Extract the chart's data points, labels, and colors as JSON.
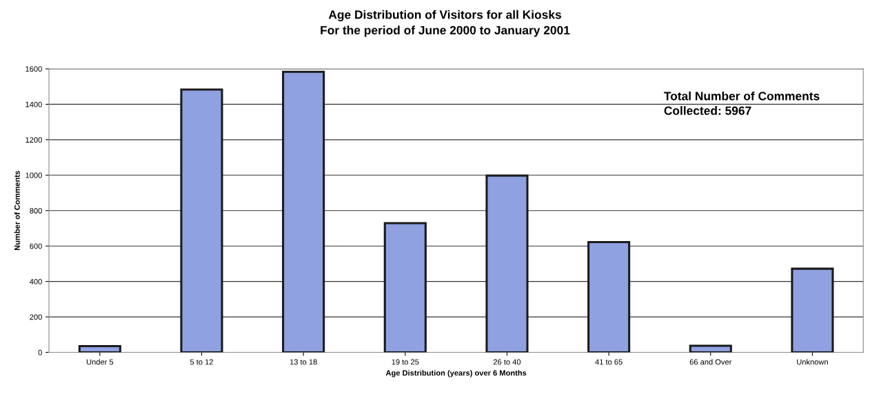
{
  "chart_data": {
    "type": "bar",
    "title": "Age Distribution of Visitors for all Kiosks\nFor the period of June 2000 to January 2001",
    "xlabel": "Age Distribution (years) over 6 Months",
    "ylabel": "Number of Comments",
    "categories": [
      "Under 5",
      "5 to 12",
      "13 to 18",
      "19 to 25",
      "26 to 40",
      "41 to 65",
      "66 and Over",
      "Unknown"
    ],
    "values": [
      35,
      1483,
      1583,
      729,
      997,
      622,
      37,
      472
    ],
    "color": "#8fa1e0",
    "ylim": [
      0,
      1600
    ],
    "yticks": [
      0,
      200,
      400,
      600,
      800,
      1000,
      1200,
      1400,
      1600
    ],
    "grid": "y",
    "legend": false,
    "annotations": [
      "Total Number of Comments\nCollected: 5967"
    ]
  }
}
